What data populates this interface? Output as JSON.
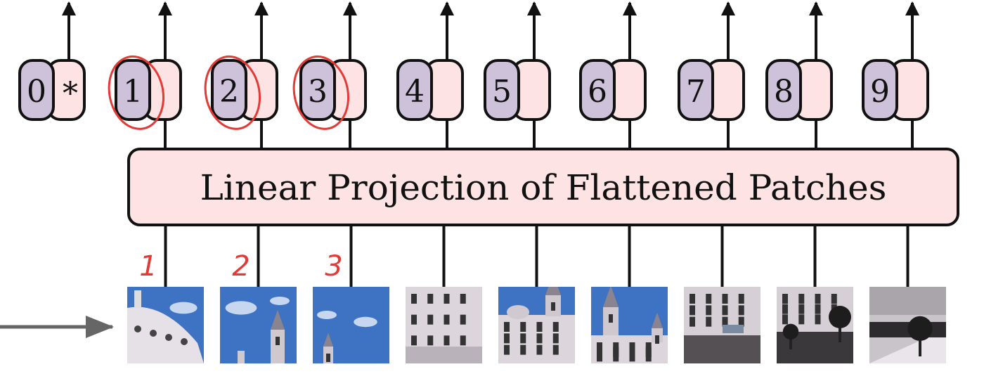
{
  "projection_label": "Linear Projection of Flattened Patches",
  "tokens": [
    {
      "position": "0",
      "embedding": "*"
    },
    {
      "position": "1",
      "embedding": ""
    },
    {
      "position": "2",
      "embedding": ""
    },
    {
      "position": "3",
      "embedding": ""
    },
    {
      "position": "4",
      "embedding": ""
    },
    {
      "position": "5",
      "embedding": ""
    },
    {
      "position": "6",
      "embedding": ""
    },
    {
      "position": "7",
      "embedding": ""
    },
    {
      "position": "8",
      "embedding": ""
    },
    {
      "position": "9",
      "embedding": ""
    }
  ],
  "patch_annotations": [
    "1",
    "2",
    "3"
  ],
  "circled_tokens": [
    "1",
    "2",
    "3"
  ],
  "patches": [
    {
      "scene": "dome-sky"
    },
    {
      "scene": "sky-spire"
    },
    {
      "scene": "sky-small-spire"
    },
    {
      "scene": "facade"
    },
    {
      "scene": "facade-tower"
    },
    {
      "scene": "tower-sky"
    },
    {
      "scene": "street-building"
    },
    {
      "scene": "street-trees"
    },
    {
      "scene": "street-tree"
    }
  ],
  "colors": {
    "position_fill": "#cdc2d9",
    "embedding_fill": "#fde3e3",
    "projection_fill": "#fde3e3",
    "annotation": "#e53935",
    "stroke": "#111111",
    "input_arrow": "#666666",
    "sky": "#3e72c2"
  }
}
